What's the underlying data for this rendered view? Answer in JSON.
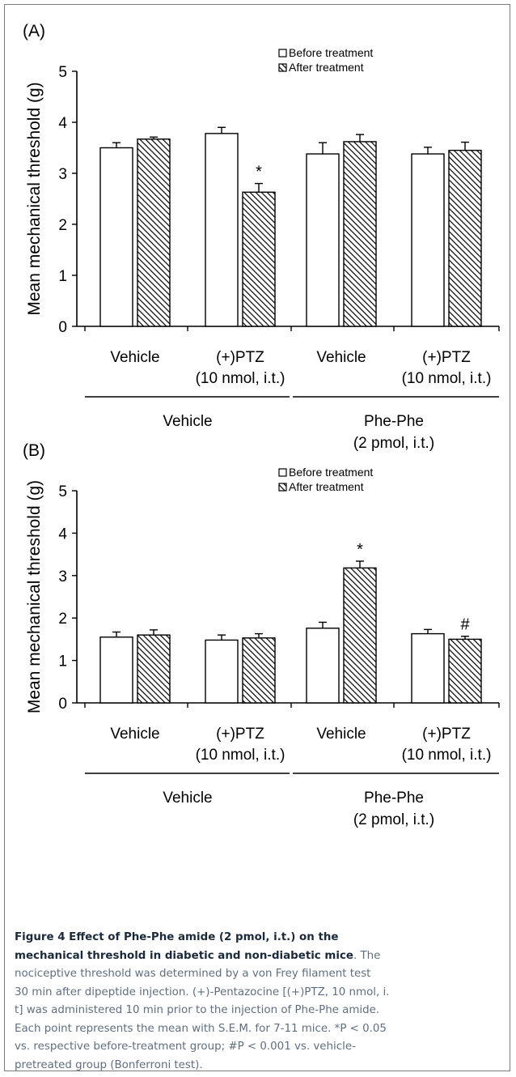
{
  "chart_data": [
    {
      "type": "bar",
      "panel_label": "(A)",
      "ylabel": "Mean mechanical threshold (g)",
      "ylim": [
        0,
        5
      ],
      "yticks": [
        "0",
        "1",
        "2",
        "3",
        "4",
        "5"
      ],
      "categories": [
        "Vehicle",
        "(+)PTZ",
        "Vehicle",
        "(+)PTZ"
      ],
      "category_sublabels": [
        "",
        "(10 nmol, i.t.)",
        "",
        "(10 nmol, i.t.)"
      ],
      "groups": [
        {
          "label": "Vehicle",
          "sublabel": ""
        },
        {
          "label": "Phe-Phe",
          "sublabel": "(2 pmol, i.t.)"
        }
      ],
      "legend_position": "top-right",
      "series": [
        {
          "name": "Before treatment",
          "fill": "open",
          "values": [
            3.5,
            3.78,
            3.38,
            3.38
          ],
          "errors": [
            0.1,
            0.12,
            0.22,
            0.13
          ],
          "markers": [
            "",
            "",
            "",
            ""
          ]
        },
        {
          "name": "After treatment",
          "fill": "hatched",
          "values": [
            3.67,
            2.63,
            3.62,
            3.45
          ],
          "errors": [
            0.04,
            0.17,
            0.14,
            0.16
          ],
          "markers": [
            "",
            "*",
            "",
            ""
          ]
        }
      ]
    },
    {
      "type": "bar",
      "panel_label": "(B)",
      "ylabel": "Mean mechanical threshold (g)",
      "ylim": [
        0,
        5
      ],
      "yticks": [
        "0",
        "1",
        "2",
        "3",
        "4",
        "5"
      ],
      "categories": [
        "Vehicle",
        "(+)PTZ",
        "Vehicle",
        "(+)PTZ"
      ],
      "category_sublabels": [
        "",
        "(10 nmol, i.t.)",
        "",
        "(10 nmol, i.t.)"
      ],
      "groups": [
        {
          "label": "Vehicle",
          "sublabel": ""
        },
        {
          "label": "Phe-Phe",
          "sublabel": "(2 pmol, i.t.)"
        }
      ],
      "legend_position": "top-right",
      "series": [
        {
          "name": "Before treatment",
          "fill": "open",
          "values": [
            1.55,
            1.48,
            1.76,
            1.63
          ],
          "errors": [
            0.12,
            0.12,
            0.14,
            0.1
          ],
          "markers": [
            "",
            "",
            "",
            ""
          ]
        },
        {
          "name": "After treatment",
          "fill": "hatched",
          "values": [
            1.6,
            1.53,
            3.18,
            1.5
          ],
          "errors": [
            0.12,
            0.1,
            0.16,
            0.07
          ],
          "markers": [
            "",
            "",
            "*",
            "#"
          ]
        }
      ]
    }
  ],
  "caption": {
    "title": "Figure 4 Effect of Phe-Phe amide (2 pmol, i.t.) on the mechanical threshold in diabetic and non-diabetic mice",
    "lines": [
      "nociceptive threshold was determined by a von Frey filament test",
      "30 min after dipeptide injection. (+)-Pentazocine [(+)PTZ, 10 nmol, i.",
      "t] was administered 10 min prior to the injection of Phe-Phe amide.",
      "Each point represents the mean with S.E.M. for 7-11 mice. *P < 0.05",
      "vs. respective before-treatment group; #P < 0.001 vs. vehicle-",
      "pretreated group (Bonferroni test)."
    ],
    "title_line1": "Figure 4 Effect of Phe-Phe amide (2 pmol, i.t.) on the",
    "title_line2": "mechanical threshold in diabetic and non-diabetic mice",
    "after_title": ". The"
  }
}
